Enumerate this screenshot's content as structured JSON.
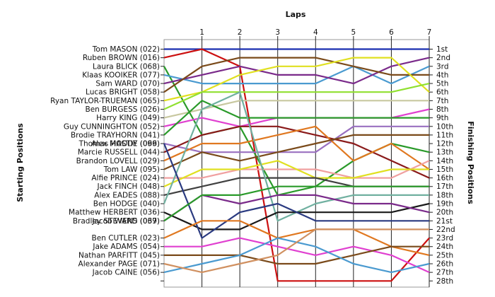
{
  "chart_data": {
    "type": "line",
    "top_axis_title": "Laps",
    "left_axis_title": "Starting Positions",
    "right_axis_title": "Finishing Positions",
    "x": [
      0,
      1,
      2,
      3,
      4,
      5,
      6,
      7
    ],
    "x_tick_labels": [
      "1",
      "2",
      "3",
      "4",
      "5",
      "6",
      "7"
    ],
    "finishing_labels": [
      "1st",
      "2nd",
      "3rd",
      "4th",
      "5th",
      "6th",
      "7th",
      "8th",
      "9th",
      "10th",
      "11th",
      "12th",
      "13th",
      "14th",
      "15th",
      "16th",
      "17th",
      "18th",
      "19th",
      "20th",
      "21st",
      "22nd",
      "23rd",
      "24th",
      "25th",
      "26th",
      "27th",
      "28th"
    ],
    "y_range": [
      1,
      28
    ],
    "inverted_y": true,
    "grid": true,
    "series": [
      {
        "name": "Tom MASON (022)",
        "color": "#1a2fb0",
        "values": [
          1,
          1,
          1,
          1,
          1,
          1,
          1,
          1
        ]
      },
      {
        "name": "Ruben BROWN (016)",
        "color": "#cc1010",
        "values": [
          2,
          1,
          3,
          28,
          28,
          28,
          28,
          23
        ]
      },
      {
        "name": "Laura BLICK (068)",
        "color": "#2a9a2a",
        "values": [
          3,
          11,
          10,
          18,
          17,
          14,
          12,
          13
        ]
      },
      {
        "name": "Klaas KOOIKER (077)",
        "color": "#4a9ad0",
        "values": [
          4,
          5,
          5,
          5,
          5,
          3,
          5,
          3
        ]
      },
      {
        "name": "Sam WARD (070)",
        "color": "#7a2a8a",
        "values": [
          5,
          4,
          3,
          4,
          4,
          5,
          3,
          2
        ]
      },
      {
        "name": "Lucas BRIGHT (058)",
        "color": "#7a4a1a",
        "values": [
          6,
          3,
          2,
          2,
          2,
          3,
          4,
          4
        ]
      },
      {
        "name": "Ryan TAYLOR-TRUEMAN (065)",
        "color": "#e0e020",
        "values": [
          7,
          6,
          4,
          3,
          3,
          2,
          2,
          6
        ]
      },
      {
        "name": "Ben BURGESS (026)",
        "color": "#90e030",
        "values": [
          8,
          6,
          6,
          6,
          6,
          6,
          6,
          5
        ]
      },
      {
        "name": "Harry KING (049)",
        "color": "#c8c8a0",
        "values": [
          9,
          8,
          7,
          7,
          7,
          7,
          7,
          7
        ]
      },
      {
        "name": "Guy CUNNINGHTON (052)",
        "color": "#e040d0",
        "values": [
          10,
          9,
          10,
          9,
          9,
          9,
          9,
          8
        ]
      },
      {
        "name": "Brodie TRAYHORN (041)",
        "color": "#2a9a2a",
        "values": [
          11,
          7,
          9,
          9,
          9,
          9,
          9,
          9
        ]
      },
      {
        "name": "Thomas HASTIE (066)",
        "color": "#9a70c0",
        "values": [
          12,
          13,
          13,
          13,
          13,
          10,
          10,
          10
        ]
      },
      {
        "name": "Marcie RUSSELL (044)",
        "color": "#8a1a1a",
        "values": [
          13,
          11,
          10,
          10,
          11,
          12,
          14,
          16
        ]
      },
      {
        "name": "Brandon LOVELL (029)",
        "color": "#e07820",
        "values": [
          14,
          12,
          12,
          11,
          10,
          14,
          12,
          15
        ]
      },
      {
        "name": "Tom LAW (095)",
        "color": "#7a4a1a",
        "values": [
          15,
          13,
          14,
          13,
          12,
          11,
          11,
          11
        ]
      },
      {
        "name": "Alfie PRINCE (024)",
        "color": "#f0a0a0",
        "values": [
          16,
          16,
          15,
          15,
          15,
          16,
          16,
          14
        ]
      },
      {
        "name": "Jack FINCH (048)",
        "color": "#e0e020",
        "values": [
          17,
          15,
          15,
          14,
          16,
          16,
          15,
          15
        ]
      },
      {
        "name": "Alex EADES (088)",
        "color": "#404040",
        "values": [
          18,
          17,
          16,
          16,
          16,
          17,
          17,
          17
        ]
      },
      {
        "name": "Ben HODGE (040)",
        "color": "#70b0a0",
        "values": [
          19,
          8,
          6,
          21,
          19,
          18,
          18,
          18
        ]
      },
      {
        "name": "Matthew HERBERT (036)",
        "color": "#1a1a1a",
        "values": [
          20,
          22,
          22,
          20,
          20,
          20,
          20,
          19
        ]
      },
      {
        "name": "Jacob WARD (069)",
        "color": "#7a2a8a",
        "values": [
          21,
          18,
          19,
          18,
          18,
          19,
          19,
          20
        ]
      },
      {
        "name": "Alex MOODY (099)",
        "color": "#2a3a80",
        "values": [
          12,
          23,
          20,
          19,
          21,
          21,
          21,
          21
        ]
      },
      {
        "name": "Ben CUTLER (023)",
        "color": "#e07820",
        "values": [
          23,
          21,
          21,
          23,
          22,
          22,
          24,
          25
        ]
      },
      {
        "name": "Jake ADAMS (054)",
        "color": "#e040d0",
        "values": [
          24,
          24,
          23,
          24,
          25,
          24,
          25,
          27
        ]
      },
      {
        "name": "Nathan PARFITT (045)",
        "color": "#7a4a1a",
        "values": [
          25,
          25,
          25,
          26,
          26,
          25,
          24,
          24
        ]
      },
      {
        "name": "Jacob CAINE (056)",
        "color": "#4a9ad0",
        "values": [
          27,
          26,
          25,
          23,
          24,
          26,
          27,
          26
        ]
      },
      {
        "name": "Alexander PAGE (071)",
        "color": "#d09060",
        "values": [
          26,
          27,
          26,
          25,
          22,
          22,
          22,
          22
        ]
      },
      {
        "name": "Bradley STEVENS (037)",
        "color": "#2a9a2a",
        "values": [
          21,
          18,
          18,
          17,
          17,
          17,
          17,
          17
        ]
      }
    ]
  }
}
